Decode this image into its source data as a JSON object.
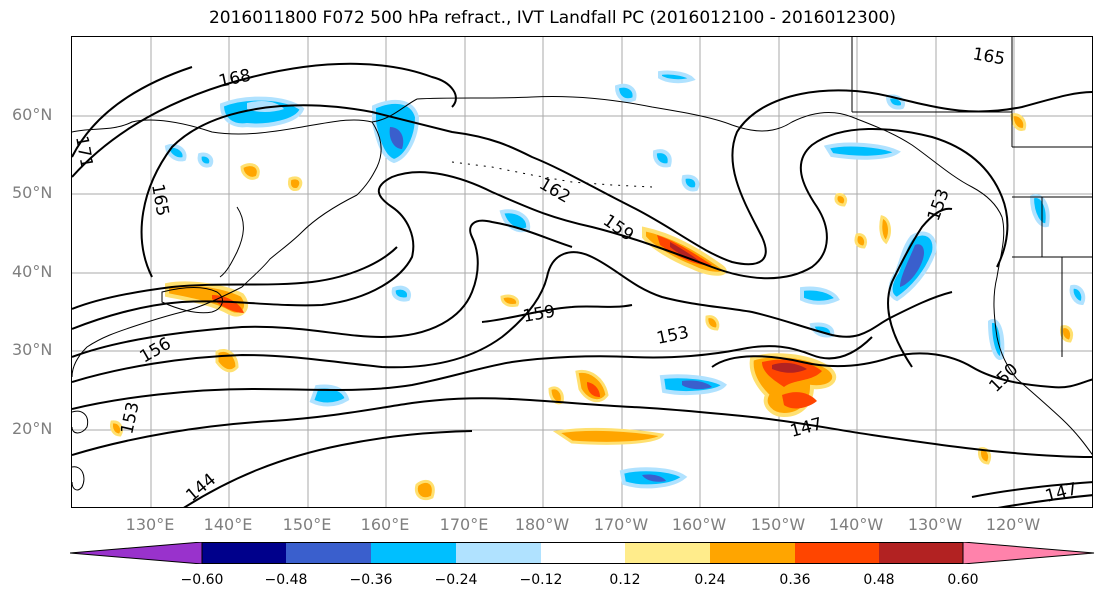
{
  "title": "2016011800 F072 500 hPa refract., IVT Landfall PC (2016012100 - 2016012300)",
  "latitude_labels": [
    "60°N",
    "50°N",
    "40°N",
    "30°N",
    "20°N"
  ],
  "longitude_labels": [
    "130°E",
    "140°E",
    "150°E",
    "160°E",
    "170°E",
    "180°W",
    "170°W",
    "160°W",
    "150°W",
    "140°W",
    "130°W",
    "120°W"
  ],
  "contour_labels": [
    "168",
    "171",
    "165",
    "162",
    "159",
    "159",
    "156",
    "153",
    "153",
    "150",
    "147",
    "144",
    "165",
    "153",
    "147"
  ],
  "colorbar": {
    "tick_labels": [
      "−0.60",
      "−0.48",
      "−0.36",
      "−0.24",
      "−0.12",
      "0.12",
      "0.24",
      "0.36",
      "0.48",
      "0.60"
    ],
    "colors": [
      "#9932cc",
      "#00008b",
      "#3a5fcd",
      "#00bfff",
      "#b0e2ff",
      "#ffffff",
      "#ffec8b",
      "#ffa500",
      "#ff4500",
      "#b22222",
      "#ff82ab"
    ]
  }
}
